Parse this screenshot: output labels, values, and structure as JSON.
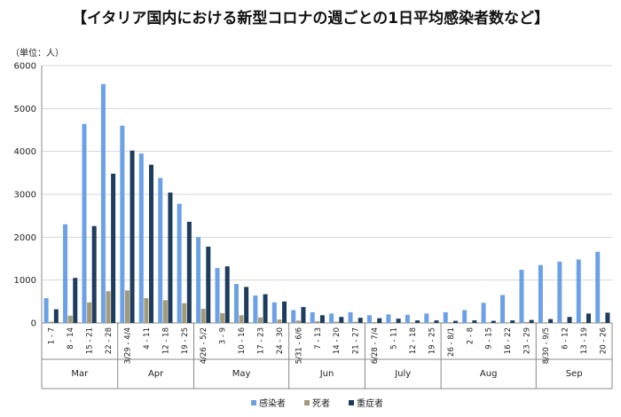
{
  "title": "【イタリア国内における新型コロナの週ごとの1日平均感染者数など】",
  "unit_label": "（単位：人）",
  "colors": {
    "infected": "#6CA1E8",
    "deaths": "#A39B78",
    "severe": "#1D3C5E"
  },
  "chart_data": {
    "type": "bar",
    "categories": [
      "1 - 7",
      "8 - 14",
      "15 - 21",
      "22 - 28",
      "3/29 - 4/4",
      "4 - 11",
      "12 - 18",
      "19 - 25",
      "4/26 - 5/2",
      "3 - 9",
      "10 - 16",
      "17 - 23",
      "24 - 30",
      "5/31 - 6/6",
      "7 - 13",
      "14 - 20",
      "21 - 27",
      "6/28 - 7/4",
      "5 - 11",
      "12 - 18",
      "19 - 25",
      "26 - 8/1",
      "2 - 8",
      "9 - 15",
      "16 - 22",
      "23 - 29",
      "8/30 - 9/5",
      "6 - 12",
      "13 - 19",
      "20 - 26"
    ],
    "months": [
      {
        "label": "Mar",
        "count": 4
      },
      {
        "label": "Apr",
        "count": 4
      },
      {
        "label": "May",
        "count": 5
      },
      {
        "label": "Jun",
        "count": 4
      },
      {
        "label": "July",
        "count": 4
      },
      {
        "label": "Aug",
        "count": 5
      },
      {
        "label": "Sep",
        "count": 4
      }
    ],
    "series": [
      {
        "name": "感染者",
        "values": [
          580,
          2300,
          4640,
          5570,
          4600,
          3950,
          3380,
          2780,
          2000,
          1280,
          910,
          640,
          480,
          300,
          250,
          220,
          250,
          180,
          200,
          190,
          220,
          250,
          300,
          470,
          650,
          1240,
          1350,
          1430,
          1480,
          1660
        ]
      },
      {
        "name": "死者",
        "values": [
          30,
          170,
          480,
          740,
          760,
          580,
          530,
          460,
          330,
          230,
          180,
          130,
          80,
          55,
          40,
          30,
          30,
          20,
          15,
          15,
          15,
          15,
          15,
          15,
          15,
          20,
          15,
          15,
          20,
          20
        ]
      },
      {
        "name": "重症者",
        "values": [
          320,
          1050,
          2260,
          3480,
          4020,
          3690,
          3040,
          2360,
          1780,
          1320,
          840,
          670,
          500,
          370,
          180,
          140,
          120,
          110,
          100,
          60,
          60,
          50,
          60,
          50,
          60,
          70,
          90,
          140,
          220,
          240
        ]
      }
    ],
    "yticks": [
      0,
      1000,
      2000,
      3000,
      4000,
      5000,
      6000
    ],
    "ylim": [
      0,
      6000
    ],
    "legend_position": "bottom"
  }
}
